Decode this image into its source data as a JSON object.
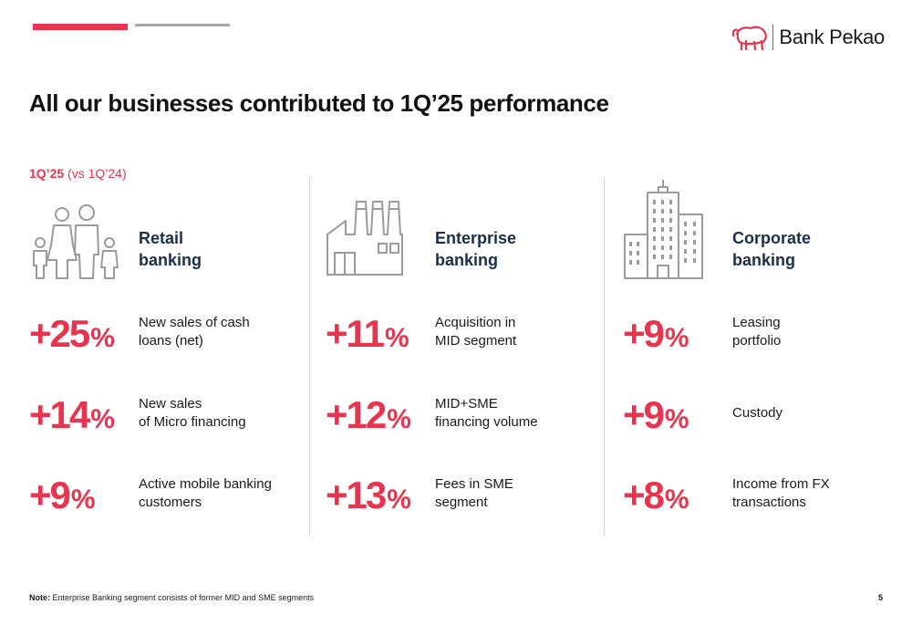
{
  "brand": {
    "name": "Bank Pekao",
    "accent_color": "#e8344e",
    "logo_icon": "bison-icon"
  },
  "title": "All our businesses contributed to 1Q’25 performance",
  "period": {
    "main": "1Q’25",
    "compare": " (vs 1Q’24)"
  },
  "columns": [
    {
      "icon": "family-icon",
      "heading": {
        "line1": "Retail",
        "line2": "banking"
      },
      "metrics": [
        {
          "value": "+25",
          "unit": "%",
          "line1": "New sales of cash",
          "line2": "loans (net)"
        },
        {
          "value": "+14",
          "unit": "%",
          "line1": "New sales",
          "line2": "of Micro financing"
        },
        {
          "value": "+9",
          "unit": "%",
          "line1": "Active mobile banking",
          "line2": "customers"
        }
      ]
    },
    {
      "icon": "factory-icon",
      "heading": {
        "line1": "Enterprise",
        "line2": "banking"
      },
      "metrics": [
        {
          "value": "+11",
          "unit": "%",
          "line1": "Acquisition in",
          "line2": "MID segment"
        },
        {
          "value": "+12",
          "unit": "%",
          "line1": "MID+SME",
          "line2": "financing volume"
        },
        {
          "value": "+13",
          "unit": "%",
          "line1": "Fees in SME",
          "line2": "segment"
        }
      ]
    },
    {
      "icon": "office-buildings-icon",
      "heading": {
        "line1": "Corporate",
        "line2": "banking"
      },
      "metrics": [
        {
          "value": "+9",
          "unit": "%",
          "line1": "Leasing",
          "line2": "portfolio"
        },
        {
          "value": "+9",
          "unit": "%",
          "line1": "Custody",
          "line2": ""
        },
        {
          "value": "+8",
          "unit": "%",
          "line1": "Income from FX",
          "line2": "transactions"
        }
      ]
    }
  ],
  "note": {
    "label": "Note:",
    "text": " Enterprise Banking segment consists of former MID and SME segments"
  },
  "page_number": "5"
}
